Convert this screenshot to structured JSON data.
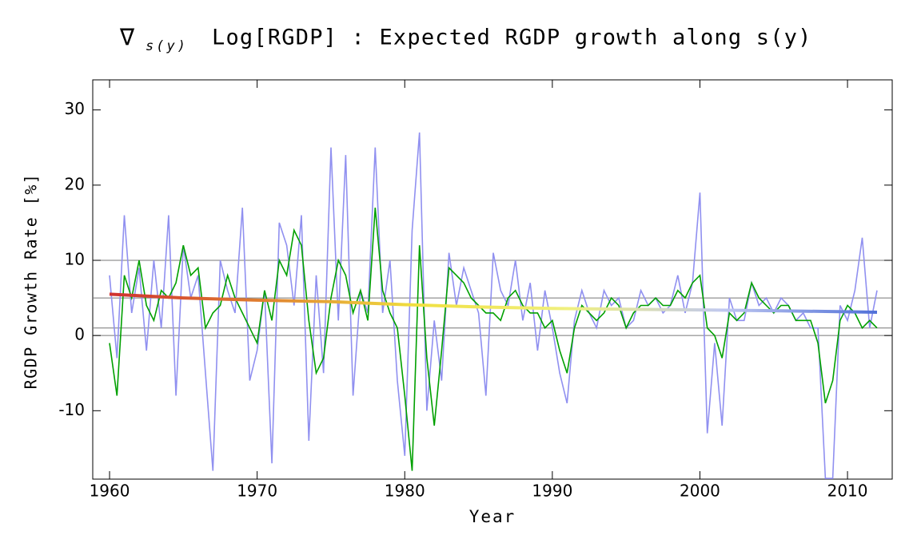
{
  "chart_data": {
    "type": "line",
    "title": {
      "nabla": "∇",
      "subscript": "s(y)",
      "text": "Log[RGDP] : Expected RGDP growth along s(y)"
    },
    "xlabel": "Year",
    "ylabel": "RGDP Growth Rate [%]",
    "xlim": [
      1958.86,
      2013.03
    ],
    "ylim": [
      -19.1,
      34
    ],
    "xticks": [
      1960,
      1970,
      1980,
      1990,
      2000,
      2010
    ],
    "yticks": [
      -10,
      0,
      10,
      20,
      30
    ],
    "hlines": [
      0,
      1,
      5,
      10
    ],
    "x": [
      1960,
      1960.5,
      1961,
      1961.5,
      1962,
      1962.5,
      1963,
      1963.5,
      1964,
      1964.5,
      1965,
      1965.5,
      1966,
      1966.5,
      1967,
      1967.5,
      1968,
      1968.5,
      1969,
      1969.5,
      1970,
      1970.5,
      1971,
      1971.5,
      1972,
      1972.5,
      1973,
      1973.5,
      1974,
      1974.5,
      1975,
      1975.5,
      1976,
      1976.5,
      1977,
      1977.5,
      1978,
      1978.5,
      1979,
      1979.5,
      1980,
      1980.5,
      1981,
      1981.5,
      1982,
      1982.5,
      1983,
      1983.5,
      1984,
      1984.5,
      1985,
      1985.5,
      1986,
      1986.5,
      1987,
      1987.5,
      1988,
      1988.5,
      1989,
      1989.5,
      1990,
      1990.5,
      1991,
      1991.5,
      1992,
      1992.5,
      1993,
      1993.5,
      1994,
      1994.5,
      1995,
      1995.5,
      1996,
      1996.5,
      1997,
      1997.5,
      1998,
      1998.5,
      1999,
      1999.5,
      2000,
      2000.5,
      2001,
      2001.5,
      2002,
      2002.5,
      2003,
      2003.5,
      2004,
      2004.5,
      2005,
      2005.5,
      2006,
      2006.5,
      2007,
      2007.5,
      2008,
      2008.5,
      2009,
      2009.5,
      2010,
      2010.5,
      2011,
      2011.5,
      2012
    ],
    "series": [
      {
        "color": "#9090f0",
        "values": [
          8,
          -3,
          16,
          3,
          9,
          -2,
          10,
          1,
          16,
          -8,
          12,
          5,
          8,
          -5,
          -18,
          10,
          6,
          3,
          17,
          -6,
          -2,
          6,
          -17,
          15,
          12,
          4,
          16,
          -14,
          8,
          -5,
          25,
          2,
          24,
          -8,
          6,
          3,
          25,
          3,
          10,
          -6,
          -16,
          14,
          27,
          -10,
          2,
          -6,
          11,
          4,
          9,
          6,
          3,
          -8,
          11,
          6,
          4,
          10,
          2,
          7,
          -2,
          6,
          1,
          -5,
          -9,
          2,
          6,
          3,
          1,
          6,
          4,
          5,
          1,
          2,
          6,
          4,
          5,
          3,
          4,
          8,
          3,
          7,
          19,
          -13,
          -1,
          -12,
          5,
          2,
          2,
          7,
          4,
          5,
          3,
          5,
          4,
          2,
          3,
          1,
          1,
          -19,
          -19,
          4,
          2,
          6,
          13,
          1,
          6
        ]
      },
      {
        "color": "#00a000",
        "values": [
          -1,
          -8,
          8,
          5,
          10,
          4,
          2,
          6,
          5,
          7,
          12,
          8,
          9,
          1,
          3,
          4,
          8,
          5,
          3,
          1,
          -1,
          6,
          2,
          10,
          8,
          14,
          12,
          2,
          -5,
          -3,
          5,
          10,
          8,
          3,
          6,
          2,
          17,
          6,
          3,
          1,
          -8,
          -18,
          12,
          -3,
          -12,
          -2,
          9,
          8,
          7,
          5,
          4,
          3,
          3,
          2,
          5,
          6,
          4,
          3,
          3,
          1,
          2,
          -2,
          -5,
          1,
          4,
          3,
          2,
          3,
          5,
          4,
          1,
          3,
          4,
          4,
          5,
          4,
          4,
          6,
          5,
          7,
          8,
          1,
          0,
          -3,
          3,
          2,
          3,
          7,
          5,
          4,
          3,
          4,
          4,
          2,
          2,
          2,
          -1,
          -9,
          -6,
          2,
          4,
          3,
          1,
          2,
          1
        ]
      }
    ],
    "trend": {
      "x": [
        1960,
        1965,
        1970,
        1975,
        1980,
        1985,
        1990,
        1995,
        2000,
        2005,
        2012
      ],
      "values": [
        5.5,
        5.0,
        4.7,
        4.5,
        4.1,
        3.8,
        3.6,
        3.5,
        3.4,
        3.3,
        3.1
      ],
      "colors": [
        "#d03030",
        "#e08030",
        "#f0e040",
        "#f0f080",
        "#c0c8f0",
        "#5070d8"
      ]
    }
  }
}
